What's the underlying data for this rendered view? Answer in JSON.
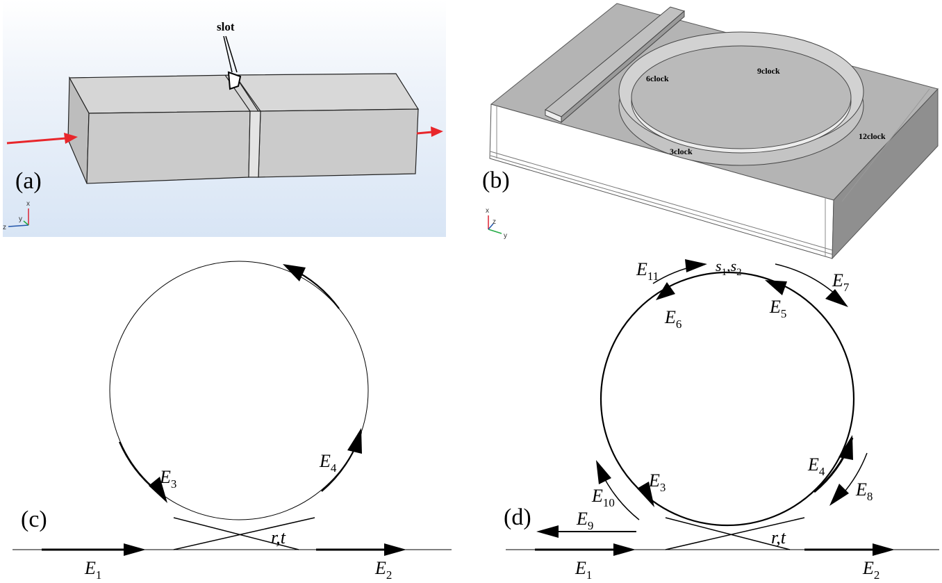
{
  "panels": {
    "a": {
      "label": "(a)",
      "slot_label": "slot",
      "axes": {
        "x": "x",
        "y": "y",
        "z": "z"
      }
    },
    "b": {
      "label": "(b)",
      "positions": {
        "p6": "6clock",
        "p9": "9clock",
        "p3": "3clock",
        "p12": "12clock"
      },
      "axes": {
        "x": "x",
        "y": "y",
        "z": "z"
      }
    },
    "c": {
      "label": "(c)",
      "coupler": "r,t",
      "fields": {
        "e1": "E",
        "e1_sub": "1",
        "e2": "E",
        "e2_sub": "2",
        "e3": "E",
        "e3_sub": "3",
        "e4": "E",
        "e4_sub": "4"
      }
    },
    "d": {
      "label": "(d)",
      "coupler": "r,t",
      "scatter": {
        "s1": "s",
        "s1_sub": "1",
        "sep": ",",
        "s2": "s",
        "s2_sub": "2"
      },
      "fields": {
        "e1": "E",
        "e1_sub": "1",
        "e2": "E",
        "e2_sub": "2",
        "e3": "E",
        "e3_sub": "3",
        "e4": "E",
        "e4_sub": "4",
        "e5": "E",
        "e5_sub": "5",
        "e6": "E",
        "e6_sub": "6",
        "e7": "E",
        "e7_sub": "7",
        "e8": "E",
        "e8_sub": "8",
        "e9": "E",
        "e9_sub": "9",
        "e10": "E",
        "e10_sub": "10",
        "e11": "E",
        "e11_sub": "11"
      }
    }
  },
  "colors": {
    "input_arrow": "#e8262b",
    "bg_a": "#dfe9f5",
    "block_grey": "#c8c8c8"
  }
}
